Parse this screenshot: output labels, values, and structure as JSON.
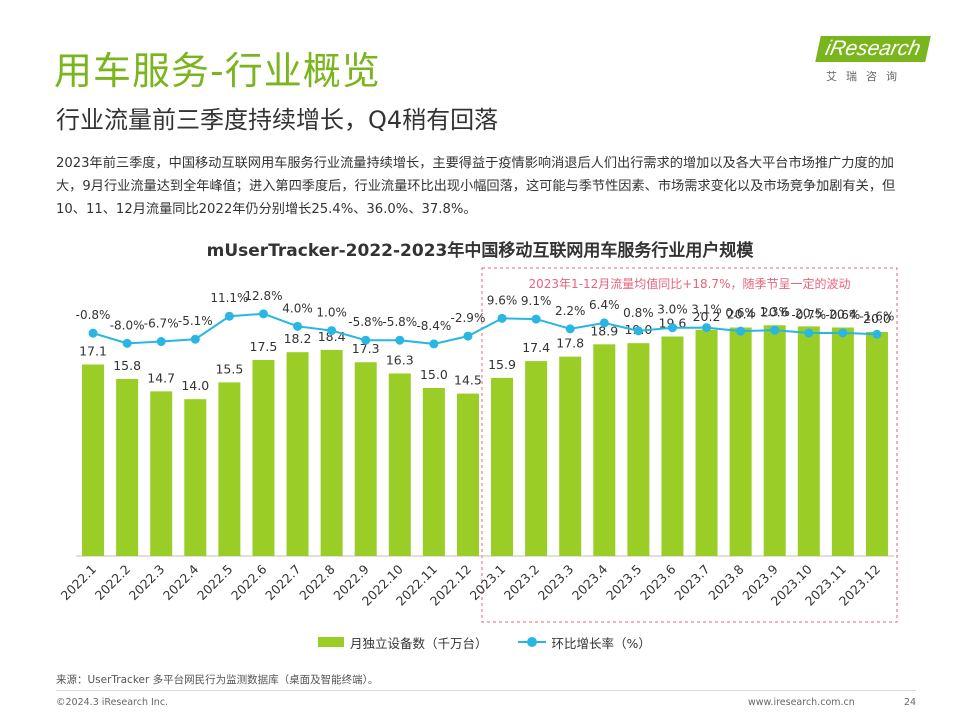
{
  "header": {
    "title": "用车服务-行业概览",
    "subtitle": "行业流量前三季度持续增长，Q4稍有回落"
  },
  "logo": {
    "word": "iResearch",
    "cn": "艾瑞咨询"
  },
  "intro": "2023年前三季度，中国移动互联网用车服务行业流量持续增长，主要得益于疫情影响消退后人们出行需求的增加以及各大平台市场推广力度的加大，9月行业流量达到全年峰值；进入第四季度后，行业流量环比出现小幅回落，这可能与季节性因素、市场需求变化以及市场竞争加剧有关，但10、11、12月流量同比2022年仍分别增长25.4%、36.0%、37.8%。",
  "chart_data": {
    "type": "bar",
    "title": "mUserTracker-2022-2023年中国移动互联网用车服务行业用户规模",
    "categories": [
      "2022.1",
      "2022.2",
      "2022.3",
      "2022.4",
      "2022.5",
      "2022.6",
      "2022.7",
      "2022.8",
      "2022.9",
      "2022.10",
      "2022.11",
      "2022.12",
      "2023.1",
      "2023.2",
      "2023.3",
      "2023.4",
      "2023.5",
      "2023.6",
      "2023.7",
      "2023.8",
      "2023.9",
      "2023.10",
      "2023.11",
      "2023.12"
    ],
    "series": [
      {
        "name": "月独立设备数（千万台）",
        "type": "bar",
        "color": "#9acd26",
        "values": [
          17.1,
          15.8,
          14.7,
          14.0,
          15.5,
          17.5,
          18.2,
          18.4,
          17.3,
          16.3,
          15.0,
          14.5,
          15.9,
          17.4,
          17.8,
          18.9,
          19.0,
          19.6,
          20.2,
          20.4,
          20.6,
          20.5,
          20.4,
          20.0
        ],
        "labels": [
          "17.1",
          "15.8",
          "14.7",
          "14.0",
          "15.5",
          "17.5",
          "18.2",
          "18.4",
          "17.3",
          "16.3",
          "15.0",
          "14.5",
          "15.9",
          "17.4",
          "17.8",
          "18.9",
          "19.0",
          "19.6",
          "20.2",
          "20.4",
          "20.6",
          "20.5",
          "20.4",
          "20.0"
        ]
      },
      {
        "name": "环比增长率（%）",
        "type": "line",
        "color": "#29b6e3",
        "values": [
          -0.8,
          -8.0,
          -6.7,
          -5.1,
          11.1,
          12.8,
          4.0,
          1.0,
          -5.8,
          -5.8,
          -8.4,
          -2.9,
          9.6,
          9.1,
          2.2,
          6.4,
          0.8,
          3.0,
          3.1,
          0.6,
          1.3,
          -0.7,
          -0.6,
          -1.6
        ],
        "labels": [
          "-0.8%",
          "-8.0%",
          "-6.7%",
          "-5.1%",
          "11.1%",
          "12.8%",
          "4.0%",
          "1.0%",
          "-5.8%",
          "-5.8%",
          "-8.4%",
          "-2.9%",
          "9.6%",
          "9.1%",
          "2.2%",
          "6.4%",
          "0.8%",
          "3.0%",
          "3.1%",
          "0.6%",
          "1.3%",
          "-0.7%",
          "-0.6%",
          "-1.6%"
        ]
      }
    ],
    "annotation": {
      "text": "2023年1-12月流量均值同比+18.7%，随季节呈一定的波动",
      "color": "#e8637a",
      "covers_from": "2023.1",
      "covers_to": "2023.12"
    },
    "ylim_bars": [
      0,
      21
    ],
    "legend_position": "bottom",
    "grid": false
  },
  "legend": {
    "bars_label": "月独立设备数（千万台）",
    "line_label": "环比增长率（%）"
  },
  "footer": {
    "source": "来源：UserTracker 多平台网民行为监测数据库（桌面及智能终端）。",
    "copyright": "©2024.3 iResearch Inc.",
    "site": "www.iresearch.com.cn",
    "page": "24"
  }
}
